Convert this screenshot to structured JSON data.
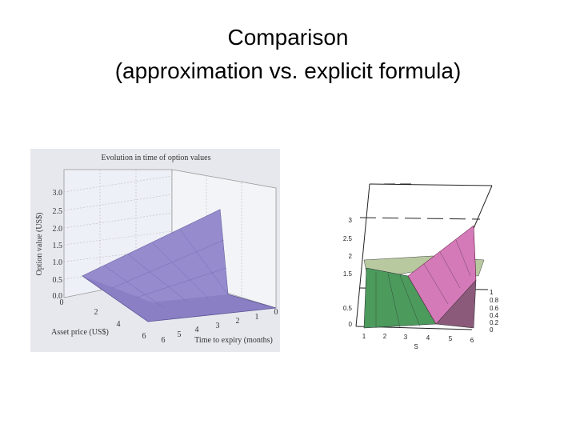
{
  "header": {
    "title": [
      "Comparison",
      "(approximation vs. explicit formula)"
    ]
  },
  "left_figure": {
    "title": "Evolution in time of option values",
    "y_label": "Option value (US$)",
    "y_ticks": [
      "3.0",
      "2.5",
      "2.0",
      "1.5",
      "1.0",
      "0.5",
      "0.0"
    ],
    "x_label": "Asset price (US$)",
    "x_ticks": [
      "0",
      "2",
      "4",
      "6"
    ],
    "z_label": "Time to expiry (months)",
    "z_ticks": [
      "6",
      "5",
      "4",
      "3",
      "2",
      "1",
      "0"
    ]
  },
  "right_figure": {
    "y_ticks": [
      "3",
      "2.5",
      "2",
      "1.5",
      "0.5",
      "0"
    ],
    "x_ticks": [
      "1",
      "2",
      "3",
      "4",
      "5",
      "6"
    ],
    "x_label": "S",
    "z_ticks": [
      "1",
      "0.8",
      "0.6",
      "0.4",
      "0.2",
      "0"
    ]
  }
}
